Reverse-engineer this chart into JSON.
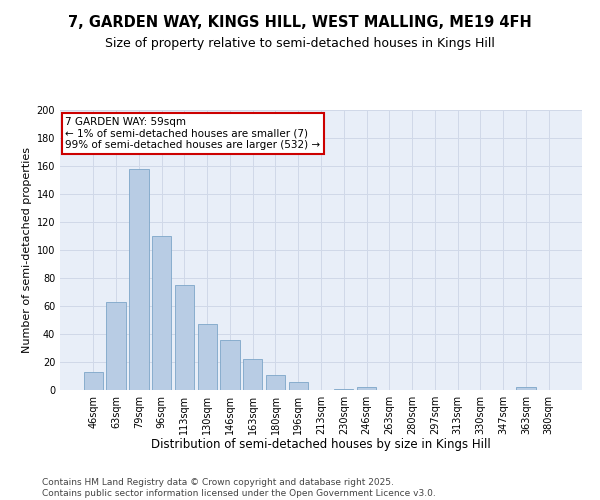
{
  "title_line1": "7, GARDEN WAY, KINGS HILL, WEST MALLING, ME19 4FH",
  "title_line2": "Size of property relative to semi-detached houses in Kings Hill",
  "xlabel": "Distribution of semi-detached houses by size in Kings Hill",
  "ylabel": "Number of semi-detached properties",
  "categories": [
    "46sqm",
    "63sqm",
    "79sqm",
    "96sqm",
    "113sqm",
    "130sqm",
    "146sqm",
    "163sqm",
    "180sqm",
    "196sqm",
    "213sqm",
    "230sqm",
    "246sqm",
    "263sqm",
    "280sqm",
    "297sqm",
    "313sqm",
    "330sqm",
    "347sqm",
    "363sqm",
    "380sqm"
  ],
  "values": [
    13,
    63,
    158,
    110,
    75,
    47,
    36,
    22,
    11,
    6,
    0,
    1,
    2,
    0,
    0,
    0,
    0,
    0,
    0,
    2,
    0
  ],
  "bar_color": "#b8cce4",
  "bar_edge_color": "#7da6c8",
  "annotation_box_text": "7 GARDEN WAY: 59sqm\n← 1% of semi-detached houses are smaller (7)\n99% of semi-detached houses are larger (532) →",
  "annotation_box_color": "#ffffff",
  "annotation_box_edge_color": "#cc0000",
  "ylim": [
    0,
    200
  ],
  "yticks": [
    0,
    20,
    40,
    60,
    80,
    100,
    120,
    140,
    160,
    180,
    200
  ],
  "grid_color": "#d0d8e8",
  "bg_color": "#e8eef8",
  "footer_text": "Contains HM Land Registry data © Crown copyright and database right 2025.\nContains public sector information licensed under the Open Government Licence v3.0.",
  "title_fontsize": 10.5,
  "subtitle_fontsize": 9,
  "xlabel_fontsize": 8.5,
  "ylabel_fontsize": 8,
  "tick_fontsize": 7,
  "footer_fontsize": 6.5,
  "annot_fontsize": 7.5
}
